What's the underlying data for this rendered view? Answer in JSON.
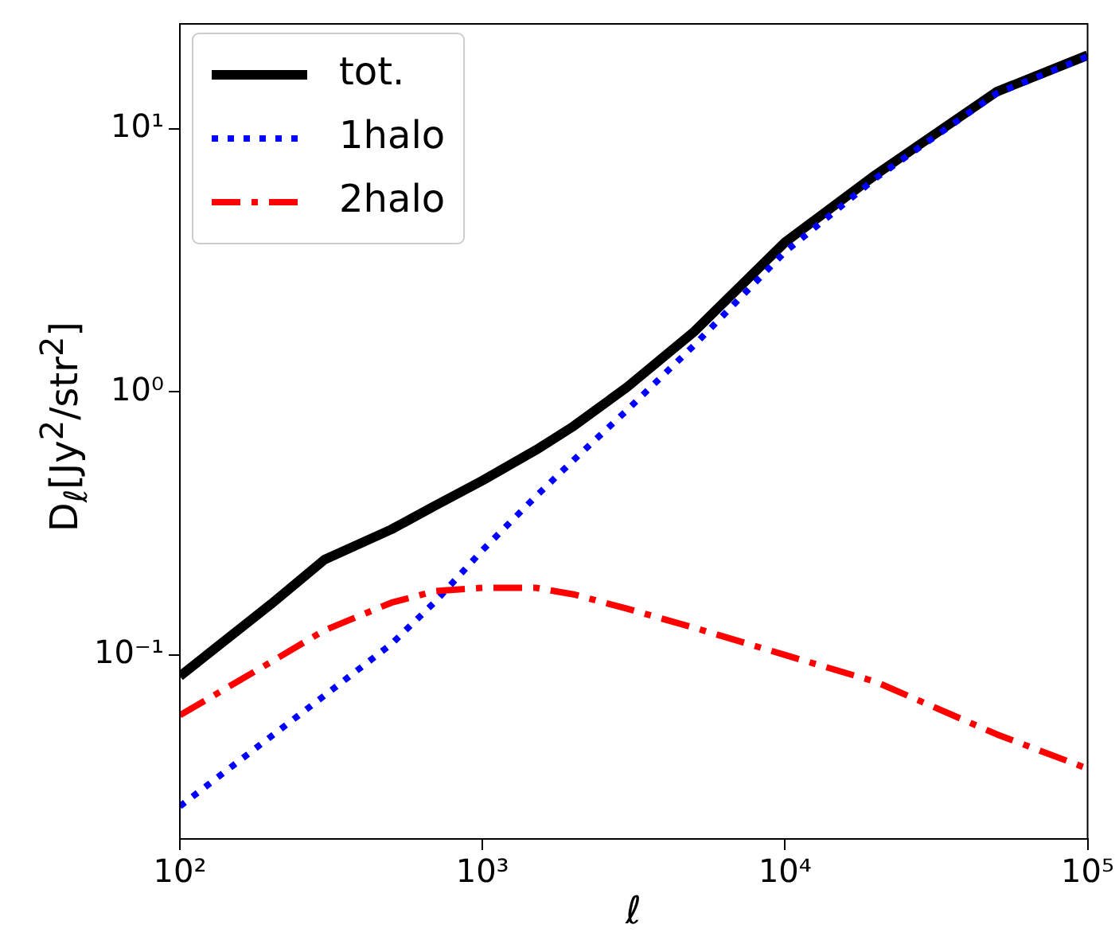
{
  "chart_data": {
    "type": "line",
    "xlabel": "ℓ",
    "ylabel": "D$_{ℓ}$[Jy$^{2}$/str$^{2}$]",
    "log": "xy",
    "grid": false,
    "legend": "top left",
    "marker": "none",
    "x": [
      100,
      200,
      300,
      500,
      700,
      1000,
      1500,
      2000,
      3000,
      5000,
      10000,
      20000,
      50000,
      100000
    ],
    "xlim": [
      100,
      100000
    ],
    "ylim": [
      0.02,
      25
    ],
    "xticks": [
      {
        "value": 100,
        "label": "10²"
      },
      {
        "value": 1000,
        "label": "10³"
      },
      {
        "value": 10000,
        "label": "10⁴"
      },
      {
        "value": 100000,
        "label": "10⁵"
      }
    ],
    "yticks": [
      {
        "value": 0.1,
        "label": "10⁻¹"
      },
      {
        "value": 1,
        "label": "10⁰"
      },
      {
        "value": 10,
        "label": "10¹"
      }
    ],
    "series": [
      {
        "name": "tot.",
        "color": "#000000",
        "line_style": "solid",
        "values": [
          0.083,
          0.156,
          0.23,
          0.3,
          0.37,
          0.46,
          0.6,
          0.74,
          1.04,
          1.69,
          3.7,
          6.7,
          13.8,
          19
        ]
      },
      {
        "name": "1halo",
        "color": "#0000ff",
        "line_style": "dotted",
        "values": [
          0.0266,
          0.049,
          0.07,
          0.11,
          0.16,
          0.25,
          0.4,
          0.55,
          0.85,
          1.5,
          3.4,
          6.5,
          13.6,
          18.8
        ]
      },
      {
        "name": "2halo",
        "color": "#ff0000",
        "line_style": "dashdot",
        "values": [
          0.059,
          0.094,
          0.124,
          0.158,
          0.175,
          0.18,
          0.18,
          0.17,
          0.15,
          0.127,
          0.1,
          0.079,
          0.05,
          0.037
        ]
      }
    ]
  }
}
